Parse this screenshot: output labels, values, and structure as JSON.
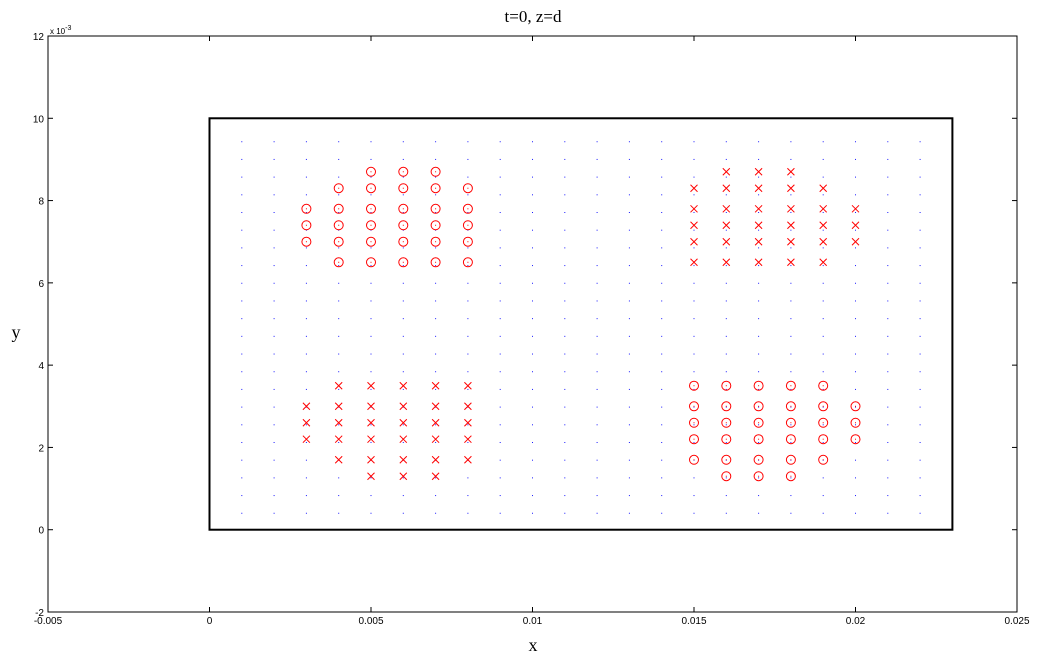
{
  "chart_data": {
    "type": "scatter",
    "title": "t=0, z=d",
    "xlabel": "x",
    "ylabel": "y",
    "xlim": [
      -0.005,
      0.025
    ],
    "ylim": [
      -0.002,
      0.012
    ],
    "x_ticks": [
      -0.005,
      0,
      0.005,
      0.01,
      0.015,
      0.02,
      0.025
    ],
    "x_tick_labels": [
      "-0.005",
      "0",
      "0.005",
      "0.01",
      "0.015",
      "0.02",
      "0.025"
    ],
    "y_ticks": [
      -0.002,
      0,
      0.002,
      0.004,
      0.006,
      0.008,
      0.01,
      0.012
    ],
    "y_tick_labels": [
      "-2",
      "0",
      "2",
      "4",
      "6",
      "8",
      "10",
      "12"
    ],
    "y_exponent_label": "x 10",
    "y_exponent_power": "-3",
    "grid": false,
    "colors": {
      "markers": "#ff0000",
      "dots": "#1a1aff",
      "frame": "#000000"
    },
    "rectangle": {
      "x": [
        0,
        0.023
      ],
      "y": [
        0,
        0.01
      ]
    },
    "grid_dots": {
      "x_start": 0.001,
      "x_step": 0.001,
      "x_count": 22,
      "y_start": 0.0004,
      "y_step": 0.00043,
      "y_count": 22
    },
    "series": [
      {
        "marker": "circle",
        "x": [
          0.003,
          0.003,
          0.003,
          0.004,
          0.004,
          0.004,
          0.004,
          0.004,
          0.005,
          0.005,
          0.005,
          0.005,
          0.005,
          0.005,
          0.006,
          0.006,
          0.006,
          0.006,
          0.006,
          0.006,
          0.007,
          0.007,
          0.007,
          0.007,
          0.007,
          0.007,
          0.008,
          0.008,
          0.008,
          0.008,
          0.008
        ],
        "y": [
          0.007,
          0.0074,
          0.0078,
          0.0065,
          0.007,
          0.0074,
          0.0078,
          0.0083,
          0.0065,
          0.007,
          0.0074,
          0.0078,
          0.0083,
          0.0087,
          0.0065,
          0.007,
          0.0074,
          0.0078,
          0.0083,
          0.0087,
          0.0065,
          0.007,
          0.0074,
          0.0078,
          0.0083,
          0.0087,
          0.0065,
          0.007,
          0.0074,
          0.0078,
          0.0083
        ]
      },
      {
        "marker": "x",
        "x": [
          0.015,
          0.015,
          0.015,
          0.015,
          0.015,
          0.016,
          0.016,
          0.016,
          0.016,
          0.016,
          0.016,
          0.017,
          0.017,
          0.017,
          0.017,
          0.017,
          0.017,
          0.018,
          0.018,
          0.018,
          0.018,
          0.018,
          0.018,
          0.019,
          0.019,
          0.019,
          0.019,
          0.019,
          0.02,
          0.02,
          0.02
        ],
        "y": [
          0.0065,
          0.007,
          0.0074,
          0.0078,
          0.0083,
          0.0065,
          0.007,
          0.0074,
          0.0078,
          0.0083,
          0.0087,
          0.0065,
          0.007,
          0.0074,
          0.0078,
          0.0083,
          0.0087,
          0.0065,
          0.007,
          0.0074,
          0.0078,
          0.0083,
          0.0087,
          0.0065,
          0.007,
          0.0074,
          0.0078,
          0.0083,
          0.007,
          0.0074,
          0.0078
        ]
      },
      {
        "marker": "x",
        "x": [
          0.003,
          0.003,
          0.003,
          0.004,
          0.004,
          0.004,
          0.004,
          0.004,
          0.005,
          0.005,
          0.005,
          0.005,
          0.005,
          0.005,
          0.006,
          0.006,
          0.006,
          0.006,
          0.006,
          0.006,
          0.007,
          0.007,
          0.007,
          0.007,
          0.007,
          0.007,
          0.008,
          0.008,
          0.008,
          0.008,
          0.008
        ],
        "y": [
          0.0022,
          0.0026,
          0.003,
          0.0017,
          0.0022,
          0.0026,
          0.003,
          0.0035,
          0.0013,
          0.0017,
          0.0022,
          0.0026,
          0.003,
          0.0035,
          0.0013,
          0.0017,
          0.0022,
          0.0026,
          0.003,
          0.0035,
          0.0013,
          0.0017,
          0.0022,
          0.0026,
          0.003,
          0.0035,
          0.0017,
          0.0022,
          0.0026,
          0.003,
          0.0035
        ]
      },
      {
        "marker": "circle",
        "x": [
          0.015,
          0.015,
          0.015,
          0.015,
          0.015,
          0.016,
          0.016,
          0.016,
          0.016,
          0.016,
          0.016,
          0.017,
          0.017,
          0.017,
          0.017,
          0.017,
          0.017,
          0.018,
          0.018,
          0.018,
          0.018,
          0.018,
          0.018,
          0.019,
          0.019,
          0.019,
          0.019,
          0.019,
          0.02,
          0.02,
          0.02
        ],
        "y": [
          0.0017,
          0.0022,
          0.0026,
          0.003,
          0.0035,
          0.0013,
          0.0017,
          0.0022,
          0.0026,
          0.003,
          0.0035,
          0.0013,
          0.0017,
          0.0022,
          0.0026,
          0.003,
          0.0035,
          0.0013,
          0.0017,
          0.0022,
          0.0026,
          0.003,
          0.0035,
          0.0017,
          0.0022,
          0.0026,
          0.003,
          0.0035,
          0.0022,
          0.0026,
          0.003
        ]
      }
    ]
  }
}
